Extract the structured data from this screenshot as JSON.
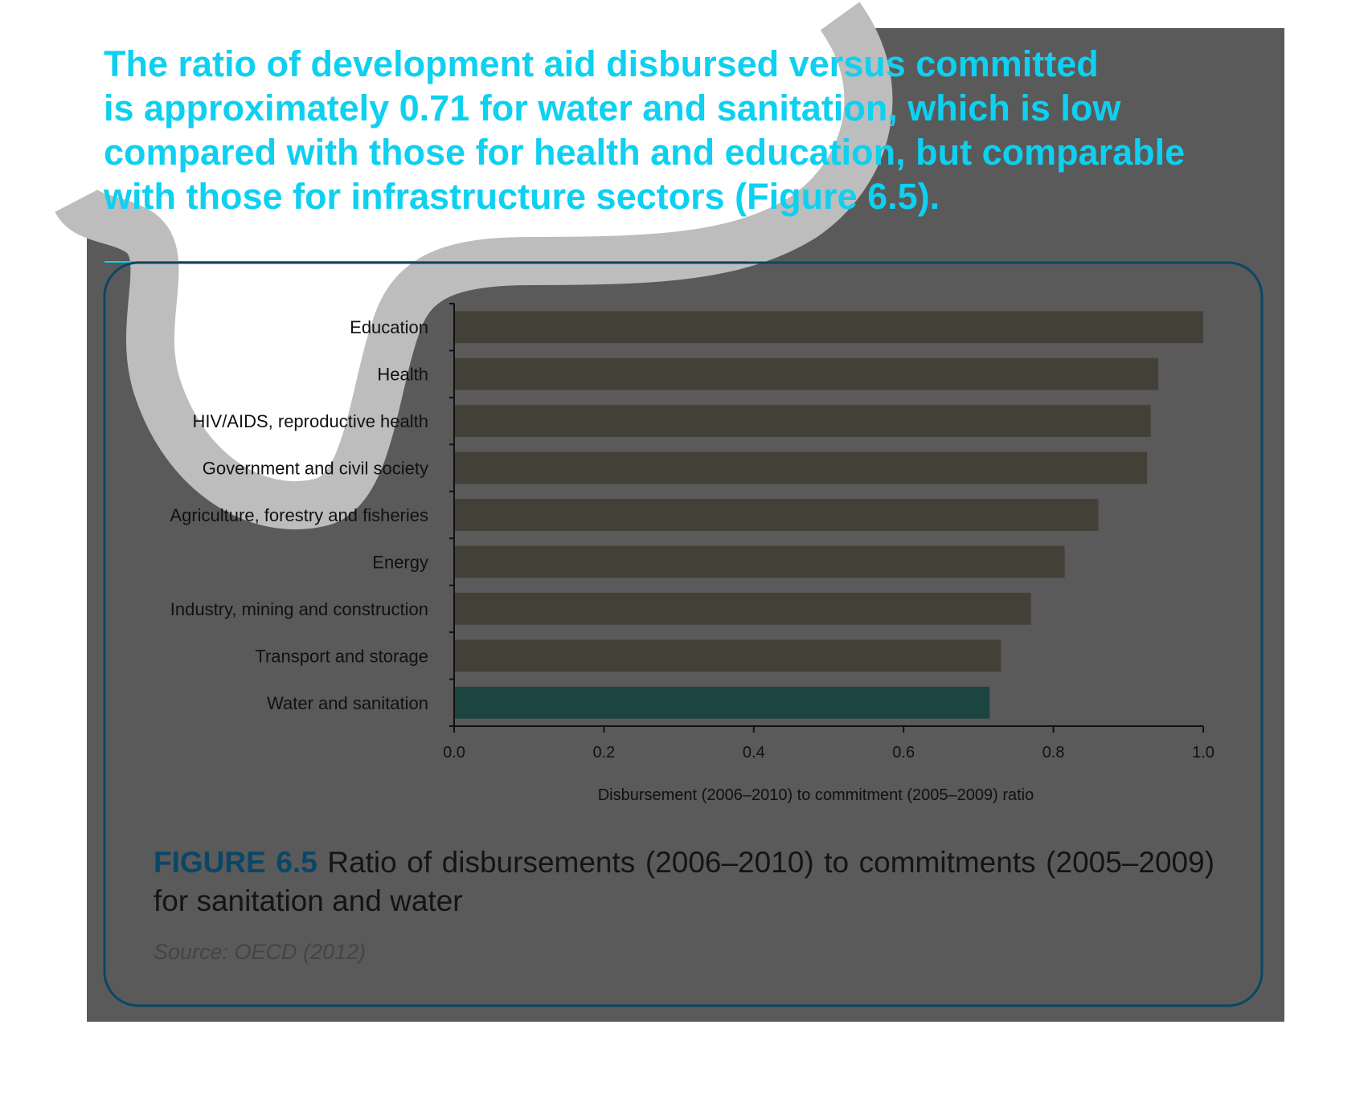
{
  "headline": {
    "lines": [
      "The ratio of development aid disbursed versus committed",
      "is approximately 0.71 for water and sanitation, which is low",
      "compared with those for health and education, but comparable",
      "with those for infrastructure sectors (Figure 6.5)."
    ]
  },
  "figure": {
    "label": "FIGURE 6.5",
    "caption": "Ratio of disbursements (2006–2010) to commitments (2005–2009) for sanitation and water",
    "source": "Source: OECD (2012)"
  },
  "colors": {
    "headline": "#0ed0f0",
    "page_overlay": "#5a5a5a",
    "river_band": "#bdbdbd",
    "box_border": "#0a4766",
    "bar": "#434037",
    "bar_highlight": "#1c4440"
  },
  "chart_data": {
    "type": "bar",
    "orientation": "horizontal",
    "categories": [
      "Education",
      "Health",
      "HIV/AIDS, reproductive health",
      "Government and civil society",
      "Agriculture, forestry and fisheries",
      "Energy",
      "Industry, mining and construction",
      "Transport and storage",
      "Water and sanitation"
    ],
    "values": [
      1.0,
      0.94,
      0.93,
      0.925,
      0.86,
      0.815,
      0.77,
      0.73,
      0.715
    ],
    "highlight": "Water and sanitation",
    "xlabel": "Disbursement (2006–2010) to commitment (2005–2009) ratio",
    "ylabel": "",
    "xlim": [
      0.0,
      1.0
    ],
    "xticks": [
      "0.0",
      "0.2",
      "0.4",
      "0.6",
      "0.8",
      "1.0"
    ],
    "grid": false
  }
}
